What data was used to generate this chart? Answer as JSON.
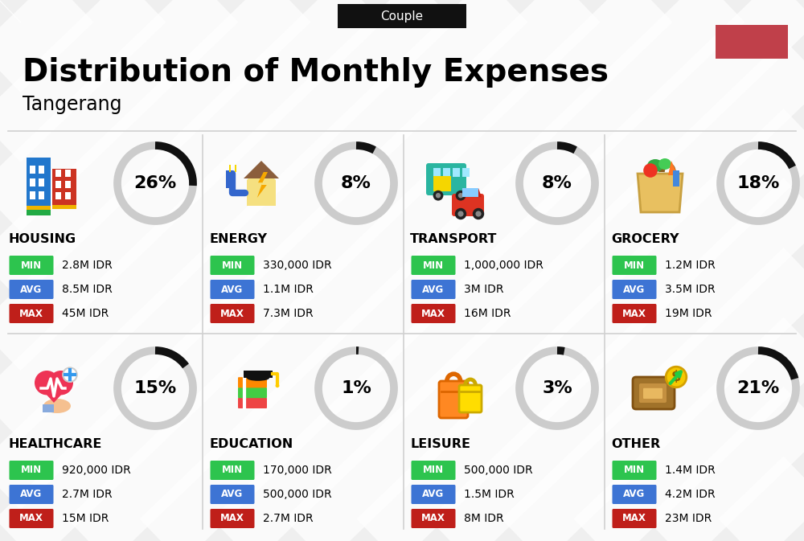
{
  "title": "Distribution of Monthly Expenses",
  "subtitle": "Tangerang",
  "label_tag": "Couple",
  "red_box_color": "#c0404a",
  "bg_color": "#efefef",
  "categories": [
    {
      "name": "HOUSING",
      "pct": 26,
      "min": "2.8M IDR",
      "avg": "8.5M IDR",
      "max": "45M IDR"
    },
    {
      "name": "ENERGY",
      "pct": 8,
      "min": "330,000 IDR",
      "avg": "1.1M IDR",
      "max": "7.3M IDR"
    },
    {
      "name": "TRANSPORT",
      "pct": 8,
      "min": "1,000,000 IDR",
      "avg": "3M IDR",
      "max": "16M IDR"
    },
    {
      "name": "GROCERY",
      "pct": 18,
      "min": "1.2M IDR",
      "avg": "3.5M IDR",
      "max": "19M IDR"
    },
    {
      "name": "HEALTHCARE",
      "pct": 15,
      "min": "920,000 IDR",
      "avg": "2.7M IDR",
      "max": "15M IDR"
    },
    {
      "name": "EDUCATION",
      "pct": 1,
      "min": "170,000 IDR",
      "avg": "500,000 IDR",
      "max": "2.7M IDR"
    },
    {
      "name": "LEISURE",
      "pct": 3,
      "min": "500,000 IDR",
      "avg": "1.5M IDR",
      "max": "8M IDR"
    },
    {
      "name": "OTHER",
      "pct": 21,
      "min": "1.4M IDR",
      "avg": "4.2M IDR",
      "max": "23M IDR"
    }
  ],
  "color_min": "#2dc44e",
  "color_avg": "#3d74d4",
  "color_max": "#bf1f1a",
  "donut_active": "#111111",
  "donut_inactive": "#cccccc",
  "stripe_color": "#e8e8e8",
  "divider_color": "#d0d0d0"
}
